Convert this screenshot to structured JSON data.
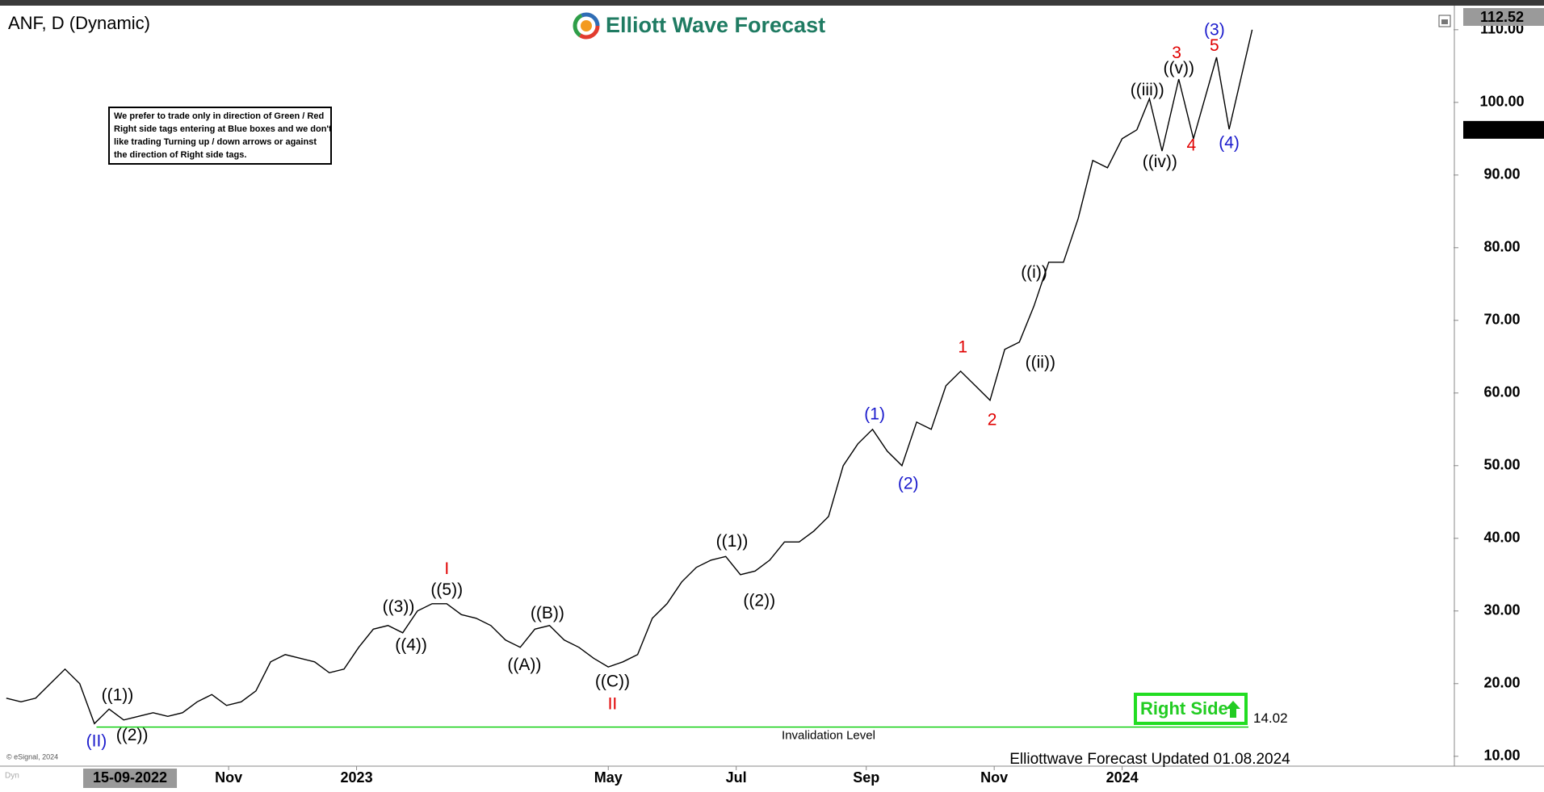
{
  "header": {
    "symbol_title": "ANF, D (Dynamic)",
    "brand": "Elliott Wave Forecast"
  },
  "notice": [
    "We prefer to trade only in direction of Green / Red",
    "Right side tags entering at Blue boxes and we don't",
    "like trading Turning up / down arrows or against",
    "the direction of Right side tags."
  ],
  "chart_data": {
    "type": "line",
    "color": "#000000",
    "x": [
      "2022-07-18",
      "2022-07-25",
      "2022-08-01",
      "2022-08-08",
      "2022-08-15",
      "2022-08-22",
      "2022-08-29",
      "2022-09-05",
      "2022-09-12",
      "2022-09-19",
      "2022-09-26",
      "2022-10-03",
      "2022-10-10",
      "2022-10-17",
      "2022-10-24",
      "2022-10-31",
      "2022-11-07",
      "2022-11-14",
      "2022-11-21",
      "2022-11-28",
      "2022-12-05",
      "2022-12-12",
      "2022-12-19",
      "2022-12-26",
      "2023-01-02",
      "2023-01-09",
      "2023-01-16",
      "2023-01-23",
      "2023-01-30",
      "2023-02-06",
      "2023-02-13",
      "2023-02-20",
      "2023-02-27",
      "2023-03-06",
      "2023-03-13",
      "2023-03-20",
      "2023-03-27",
      "2023-04-03",
      "2023-04-10",
      "2023-04-17",
      "2023-04-24",
      "2023-05-01",
      "2023-05-08",
      "2023-05-15",
      "2023-05-22",
      "2023-05-29",
      "2023-06-05",
      "2023-06-12",
      "2023-06-19",
      "2023-06-26",
      "2023-07-03",
      "2023-07-10",
      "2023-07-17",
      "2023-07-24",
      "2023-07-31",
      "2023-08-07",
      "2023-08-14",
      "2023-08-21",
      "2023-08-28",
      "2023-09-04",
      "2023-09-11",
      "2023-09-18",
      "2023-09-25",
      "2023-10-02",
      "2023-10-09",
      "2023-10-16",
      "2023-10-23",
      "2023-10-30",
      "2023-11-06",
      "2023-11-13",
      "2023-11-20",
      "2023-11-27",
      "2023-12-04",
      "2023-12-11",
      "2023-12-18",
      "2023-12-25",
      "2024-01-01",
      "2024-01-08"
    ],
    "values": [
      18,
      17.5,
      18,
      20,
      22,
      20,
      14.5,
      16.5,
      15,
      15.5,
      16,
      15.5,
      16,
      17.5,
      18.5,
      17,
      17.5,
      19,
      23,
      24,
      23.5,
      23,
      21.5,
      22,
      25,
      27.5,
      28,
      27,
      30,
      31,
      31,
      29.5,
      29,
      28,
      26,
      25,
      27.5,
      28,
      26,
      25,
      23.5,
      22.3,
      23,
      24,
      29,
      31,
      34,
      36,
      37,
      37.5,
      35,
      35.5,
      37,
      39.5,
      39.5,
      41,
      43,
      50,
      53,
      55,
      52,
      50,
      56,
      55,
      61,
      63,
      61,
      59,
      66,
      67,
      72,
      78,
      78,
      84,
      92,
      91,
      95,
      96.22
    ],
    "xlim": [
      "2022-07-15",
      "2024-06-07"
    ],
    "ylim": [
      8.64,
      112.98
    ],
    "yticks": [
      {
        "value": 10,
        "label": "10.00"
      },
      {
        "value": 20,
        "label": "20.00"
      },
      {
        "value": 30,
        "label": "30.00"
      },
      {
        "value": 40,
        "label": "40.00"
      },
      {
        "value": 50,
        "label": "50.00"
      },
      {
        "value": 60,
        "label": "60.00"
      },
      {
        "value": 70,
        "label": "70.00"
      },
      {
        "value": 80,
        "label": "80.00"
      },
      {
        "value": 90,
        "label": "90.00"
      },
      {
        "value": 100,
        "label": "100.00"
      },
      {
        "value": 110,
        "label": "110.00"
      }
    ],
    "xticks": [
      {
        "value": "2022-11-01",
        "label": "Nov"
      },
      {
        "value": "2023-01-01",
        "label": "2023"
      },
      {
        "value": "2023-05-01",
        "label": "May"
      },
      {
        "value": "2023-07-01",
        "label": "Jul"
      },
      {
        "value": "2023-09-01",
        "label": "Sep"
      },
      {
        "value": "2023-11-01",
        "label": "Nov"
      },
      {
        "value": "2024-01-01",
        "label": "2024"
      }
    ],
    "x_cursor": {
      "value": "2022-09-15",
      "label": "15-09-2022"
    },
    "last_price": 96.22,
    "high_marker": 112.52,
    "projection": {
      "x": [
        "2024-01-08",
        "2024-01-14",
        "2024-01-20",
        "2024-01-28",
        "2024-02-04",
        "2024-02-15",
        "2024-02-21",
        "2024-03-03"
      ],
      "values": [
        96.22,
        100.5,
        93.3,
        103.2,
        95,
        106.2,
        96.3,
        110
      ]
    },
    "invalidation": {
      "value": 14.02,
      "text": "Invalidation Level",
      "color": "#00cc00"
    },
    "right_side_tag": "Right Side",
    "annotations": [
      {
        "text": "((1))",
        "x": "2022-09-09",
        "y": 18.3,
        "color": "#000000"
      },
      {
        "text": "((2))",
        "x": "2022-09-16",
        "y": 12.8,
        "color": "#000000"
      },
      {
        "text": "(II)",
        "x": "2022-08-30",
        "y": 12.0,
        "color": "#1a1acc"
      },
      {
        "text": "((3))",
        "x": "2023-01-21",
        "y": 30.5,
        "color": "#000000"
      },
      {
        "text": "((4))",
        "x": "2023-01-27",
        "y": 25.2,
        "color": "#000000"
      },
      {
        "text": "((5))",
        "x": "2023-02-13",
        "y": 32.8,
        "color": "#000000"
      },
      {
        "text": "I",
        "x": "2023-02-13",
        "y": 35.7,
        "color": "#e00000"
      },
      {
        "text": "((A))",
        "x": "2023-03-22",
        "y": 22.5,
        "color": "#000000"
      },
      {
        "text": "((B))",
        "x": "2023-04-02",
        "y": 29.6,
        "color": "#000000"
      },
      {
        "text": "((C))",
        "x": "2023-05-03",
        "y": 20.2,
        "color": "#000000"
      },
      {
        "text": "II",
        "x": "2023-05-03",
        "y": 17.1,
        "color": "#e00000"
      },
      {
        "text": "((1))",
        "x": "2023-06-29",
        "y": 39.5,
        "color": "#000000"
      },
      {
        "text": "((2))",
        "x": "2023-07-12",
        "y": 31.3,
        "color": "#000000"
      },
      {
        "text": "(1)",
        "x": "2023-09-05",
        "y": 57.0,
        "color": "#1a1acc"
      },
      {
        "text": "(2)",
        "x": "2023-09-21",
        "y": 47.4,
        "color": "#1a1acc"
      },
      {
        "text": "1",
        "x": "2023-10-17",
        "y": 66.2,
        "color": "#e00000"
      },
      {
        "text": "2",
        "x": "2023-10-31",
        "y": 56.2,
        "color": "#e00000"
      },
      {
        "text": "((i))",
        "x": "2023-11-20",
        "y": 76.5,
        "color": "#000000"
      },
      {
        "text": "((ii))",
        "x": "2023-11-23",
        "y": 64.1,
        "color": "#000000"
      },
      {
        "text": "((iii))",
        "x": "2024-01-13",
        "y": 101.6,
        "color": "#000000"
      },
      {
        "text": "((iv))",
        "x": "2024-01-19",
        "y": 91.7,
        "color": "#000000"
      },
      {
        "text": "((v))",
        "x": "2024-01-28",
        "y": 104.6,
        "color": "#000000"
      },
      {
        "text": "3",
        "x": "2024-01-27",
        "y": 106.7,
        "color": "#e00000"
      },
      {
        "text": "4",
        "x": "2024-02-03",
        "y": 94.0,
        "color": "#e00000"
      },
      {
        "text": "5",
        "x": "2024-02-14",
        "y": 107.7,
        "color": "#e00000"
      },
      {
        "text": "(3)",
        "x": "2024-02-14",
        "y": 109.9,
        "color": "#1a1acc"
      },
      {
        "text": "(4)",
        "x": "2024-02-21",
        "y": 94.3,
        "color": "#1a1acc"
      }
    ],
    "footer": "Elliottwave Forecast Updated 01.08.2024",
    "credit": "© eSignal, 2024",
    "mode": "Dyn"
  }
}
